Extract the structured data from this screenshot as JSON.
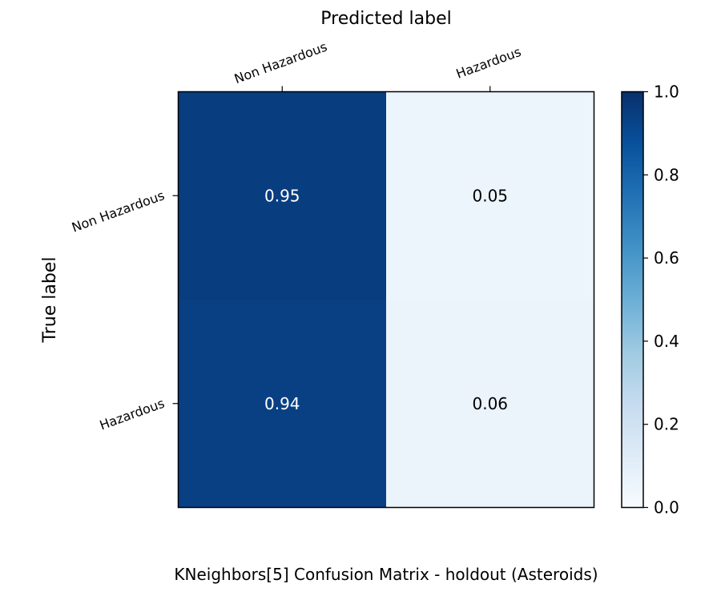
{
  "chart_data": {
    "type": "heatmap",
    "title": "KNeighbors[5] Confusion Matrix - holdout (Asteroids)",
    "xlabel": "Predicted label",
    "ylabel": "True label",
    "x_categories": [
      "Non Hazardous",
      "Hazardous"
    ],
    "y_categories": [
      "Non Hazardous",
      "Hazardous"
    ],
    "values": [
      [
        0.95,
        0.05
      ],
      [
        0.94,
        0.06
      ]
    ],
    "cell_labels": [
      [
        "0.95",
        "0.05"
      ],
      [
        "0.94",
        "0.06"
      ]
    ],
    "colormap": "Blues",
    "colorbar": {
      "range": [
        0.0,
        1.0
      ],
      "ticks": [
        "0.0",
        "0.2",
        "0.4",
        "0.6",
        "0.8",
        "1.0"
      ]
    },
    "grid": false
  }
}
